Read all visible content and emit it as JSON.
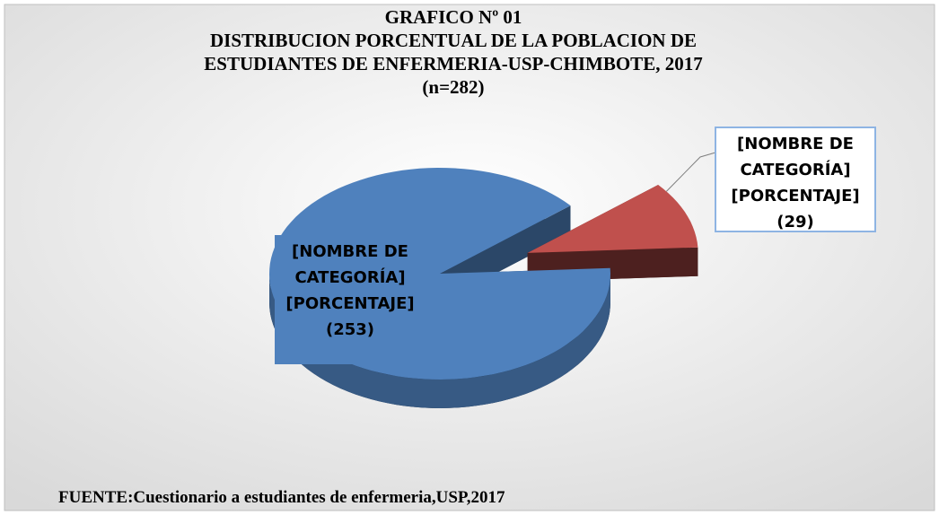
{
  "chart_data": {
    "type": "pie3d",
    "title": [
      "GRAFICO Nº 01",
      "DISTRIBUCION PORCENTUAL DE LA POBLACION DE",
      "ESTUDIANTES DE ENFERMERIA-USP-CHIMBOTE, 2017",
      "(n=282)"
    ],
    "categories": [
      "[NOMBRE DE CATEGORÍA]",
      "[NOMBRE DE CATEGORÍA]"
    ],
    "percent_labels": [
      "[PORCENTAJE]",
      "[PORCENTAJE]"
    ],
    "values": [
      253,
      29
    ],
    "value_labels": [
      "(253)",
      "(29)"
    ],
    "colors": [
      "#4f81bd",
      "#c0504d"
    ],
    "source": "FUENTE:Cuestionario a estudiantes de enfermeria,USP,2017"
  }
}
